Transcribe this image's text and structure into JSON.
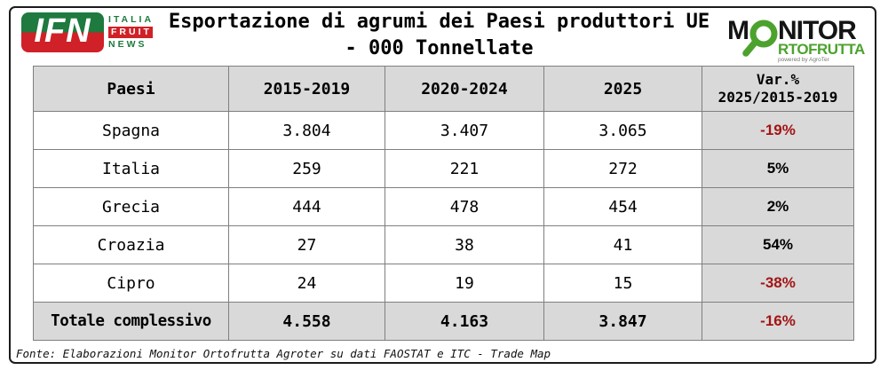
{
  "logos": {
    "ifn": {
      "acronym": "IFN",
      "word1": "ITALIA",
      "word2": "FRUIT",
      "word3": "NEWS"
    },
    "monitor": {
      "m": "M",
      "nitor": "NITOR",
      "row2": "RTOFRUTTA",
      "powered": "powered by AgroTer"
    }
  },
  "title": {
    "line1": "Esportazione di agrumi dei Paesi produttori UE",
    "line2": "- 000 Tonnellate"
  },
  "table": {
    "columns": [
      "Paesi",
      "2015-2019",
      "2020-2024",
      "2025"
    ],
    "var_column": {
      "line1": "Var.%",
      "line2": "2025/2015-2019"
    },
    "rows": [
      {
        "country": "Spagna",
        "v1": "3.804",
        "v2": "3.407",
        "v3": "3.065",
        "var": "-19%",
        "negative": true
      },
      {
        "country": "Italia",
        "v1": "259",
        "v2": "221",
        "v3": "272",
        "var": "5%",
        "negative": false
      },
      {
        "country": "Grecia",
        "v1": "444",
        "v2": "478",
        "v3": "454",
        "var": "2%",
        "negative": false
      },
      {
        "country": "Croazia",
        "v1": "27",
        "v2": "38",
        "v3": "41",
        "var": "54%",
        "negative": false
      },
      {
        "country": "Cipro",
        "v1": "24",
        "v2": "19",
        "v3": "15",
        "var": "-38%",
        "negative": true
      }
    ],
    "total": {
      "country": "Totale complessivo",
      "v1": "4.558",
      "v2": "4.163",
      "v3": "3.847",
      "var": "-16%",
      "negative": true
    }
  },
  "footer": {
    "text": "Fonte: Elaborazioni Monitor Ortofrutta Agroter su dati FAOSTAT e ITC - Trade Map"
  },
  "colors": {
    "cell_gray": "#d9d9d9",
    "grid_gray": "#7f7f7f",
    "negative_red": "#a31414",
    "ifn_green": "#1e7a3e",
    "ifn_red": "#cf2127",
    "monitor_green": "#4ca22d"
  },
  "chart_data": {
    "type": "table",
    "title": "Esportazione di agrumi dei Paesi produttori UE - 000 Tonnellate",
    "unit": "000 tonnellate",
    "columns": [
      "Paesi",
      "2015-2019",
      "2020-2024",
      "2025",
      "Var.% 2025/2015-2019"
    ],
    "rows": [
      [
        "Spagna",
        3804,
        3407,
        3065,
        "-19%"
      ],
      [
        "Italia",
        259,
        221,
        272,
        "5%"
      ],
      [
        "Grecia",
        444,
        478,
        454,
        "2%"
      ],
      [
        "Croazia",
        27,
        38,
        41,
        "54%"
      ],
      [
        "Cipro",
        24,
        19,
        15,
        "-38%"
      ],
      [
        "Totale complessivo",
        4558,
        4163,
        3847,
        "-16%"
      ]
    ],
    "source": "Fonte: Elaborazioni Monitor Ortofrutta Agroter su dati FAOSTAT e ITC - Trade Map"
  }
}
